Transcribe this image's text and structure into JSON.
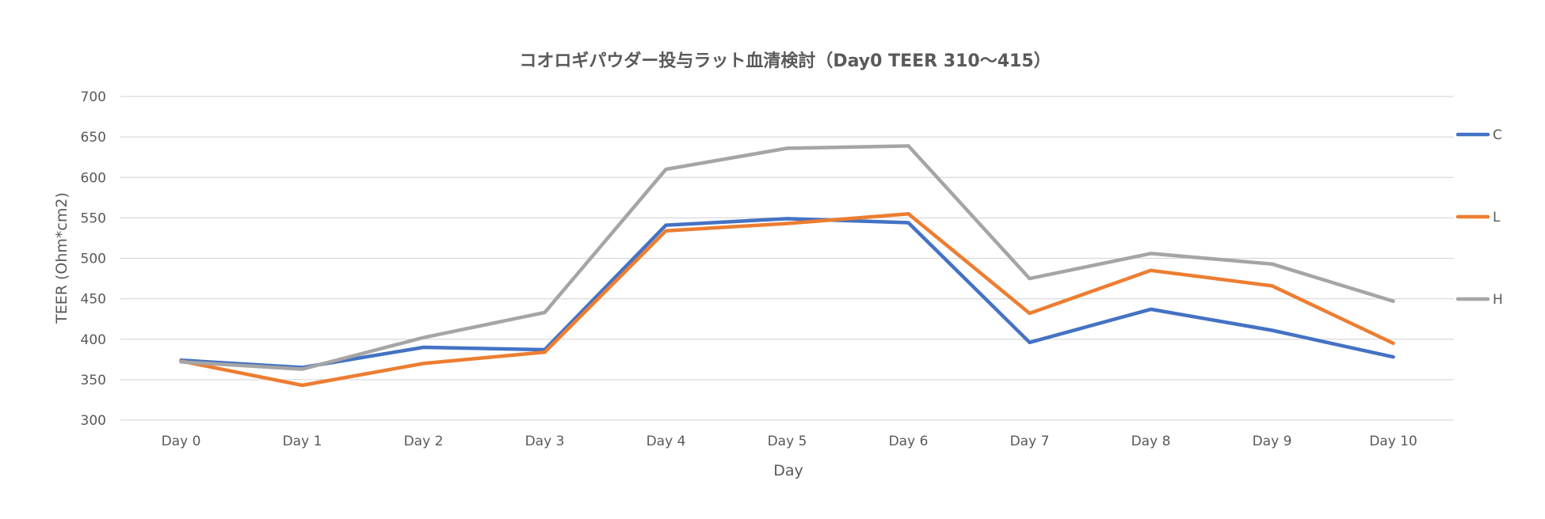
{
  "chart_data": {
    "type": "line",
    "title": "コオロギパウダー投与ラット血清検討（Day0 TEER 310～415）",
    "xlabel": "Day",
    "ylabel": "TEER (Ohm*cm2)",
    "categories": [
      "Day 0",
      "Day 1",
      "Day 2",
      "Day 3",
      "Day 4",
      "Day 5",
      "Day 6",
      "Day 7",
      "Day 8",
      "Day 9",
      "Day 10"
    ],
    "ylim": [
      300,
      700
    ],
    "yticks": [
      300,
      350,
      400,
      450,
      500,
      550,
      600,
      650,
      700
    ],
    "grid": true,
    "legend_position": "right",
    "series": [
      {
        "name": "C",
        "color": "#4472c4",
        "values": [
          374,
          365,
          390,
          387,
          541,
          549,
          544,
          396,
          437,
          411,
          378
        ]
      },
      {
        "name": "L",
        "color": "#ed7d31",
        "values": [
          373,
          343,
          370,
          384,
          534,
          543,
          555,
          432,
          485,
          466,
          395
        ]
      },
      {
        "name": "H",
        "color": "#a5a5a5",
        "values": [
          372,
          363,
          402,
          433,
          610,
          636,
          639,
          475,
          506,
          493,
          447
        ]
      }
    ]
  }
}
